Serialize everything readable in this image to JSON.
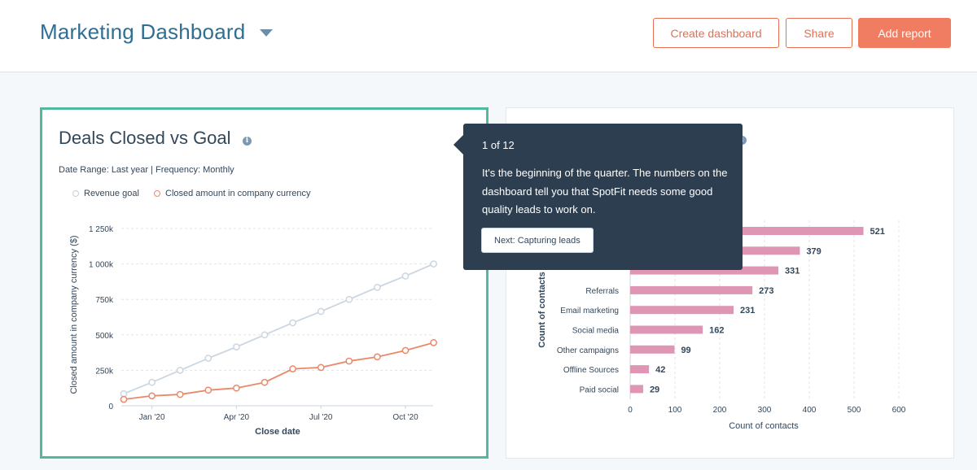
{
  "header": {
    "title": "Marketing Dashboard",
    "buttons": {
      "create_dashboard": "Create dashboard",
      "share": "Share",
      "add_report": "Add report"
    }
  },
  "colors": {
    "title_blue": "#2f6f93",
    "accent_orange": "#f07d61",
    "card_highlight": "#53b8a0",
    "tooltip_bg": "#2d3e50",
    "goal_line": "#cbd6e2",
    "closed_line": "#e9896b",
    "bar_pink": "#df95b4"
  },
  "icons": {
    "dropdown": "caret-down-icon",
    "info": "info-icon"
  },
  "left_card": {
    "title": "Deals Closed vs Goal",
    "meta": "Date Range: Last year | Frequency: Monthly",
    "legend": [
      "Revenue goal",
      "Closed amount in company currency"
    ]
  },
  "right_card": {
    "title_partial": ""
  },
  "tooltip": {
    "step": "1 of 12",
    "body": "It's the beginning of the quarter. The numbers on the dashboard tell you that SpotFit needs some good quality leads to work on.",
    "button": "Next: Capturing leads"
  },
  "chart_data": [
    {
      "type": "line",
      "title": "Deals Closed vs Goal",
      "xlabel": "Close date",
      "ylabel": "Closed amount in company currency ($)",
      "x_tick_labels": [
        "Jan '20",
        "Apr '20",
        "Jul '20",
        "Oct '20"
      ],
      "y_tick_labels": [
        "0",
        "250k",
        "500k",
        "750k",
        "1 000k",
        "1 250k"
      ],
      "ylim": [
        0,
        1250000
      ],
      "grid": true,
      "legend_position": "top-left",
      "x": [
        "Dec '19",
        "Jan '20",
        "Feb '20",
        "Mar '20",
        "Apr '20",
        "May '20",
        "Jun '20",
        "Jul '20",
        "Aug '20",
        "Sep '20",
        "Oct '20",
        "Nov '20"
      ],
      "series": [
        {
          "name": "Revenue goal",
          "color": "#cbd6e2",
          "values": [
            85000,
            165000,
            250000,
            335000,
            415000,
            500000,
            585000,
            665000,
            750000,
            835000,
            915000,
            1000000
          ]
        },
        {
          "name": "Closed amount in company currency",
          "color": "#e9896b",
          "values": [
            45000,
            70000,
            80000,
            110000,
            125000,
            165000,
            260000,
            270000,
            315000,
            345000,
            390000,
            445000
          ]
        }
      ]
    },
    {
      "type": "bar",
      "orientation": "horizontal",
      "xlabel": "Count of contacts",
      "ylabel": "Count of contacts",
      "xlim": [
        0,
        600
      ],
      "x_tick_labels": [
        "0",
        "100",
        "200",
        "300",
        "400",
        "500",
        "600"
      ],
      "grid": true,
      "categories": [
        "",
        "",
        "",
        "Referrals",
        "Email marketing",
        "Social media",
        "Other campaigns",
        "Offline Sources",
        "Paid social"
      ],
      "values": [
        521,
        379,
        331,
        273,
        231,
        162,
        99,
        42,
        29
      ]
    }
  ]
}
